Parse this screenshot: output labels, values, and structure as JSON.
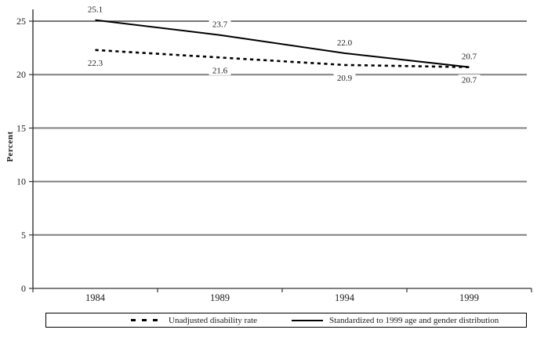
{
  "chart_data": {
    "type": "line",
    "title": "",
    "xlabel": "",
    "ylabel": "Percent",
    "categories": [
      "1984",
      "1989",
      "1994",
      "1999"
    ],
    "series": [
      {
        "name": "Unadjusted disability rate",
        "style": "dashed",
        "values": [
          22.3,
          21.6,
          20.9,
          20.7
        ],
        "labels": [
          "22.3",
          "21.6",
          "20.9",
          "20.7"
        ],
        "label_side": "below"
      },
      {
        "name": "Standardized to 1999 age and gender distribution",
        "style": "solid",
        "values": [
          25.1,
          23.7,
          22.0,
          20.7
        ],
        "labels": [
          "25.1",
          "23.7",
          "22.0",
          "20.7"
        ],
        "label_side": "above"
      }
    ],
    "ylim": [
      0,
      25
    ],
    "yticks": [
      0,
      5,
      10,
      15,
      20,
      25
    ],
    "grid": true,
    "legend_position": "bottom",
    "colors": {
      "series": "#000000",
      "gridline": "#7f7f7f",
      "top_gridline": "#4a4a4a",
      "axis": "#333333",
      "background": "#ffffff"
    }
  }
}
